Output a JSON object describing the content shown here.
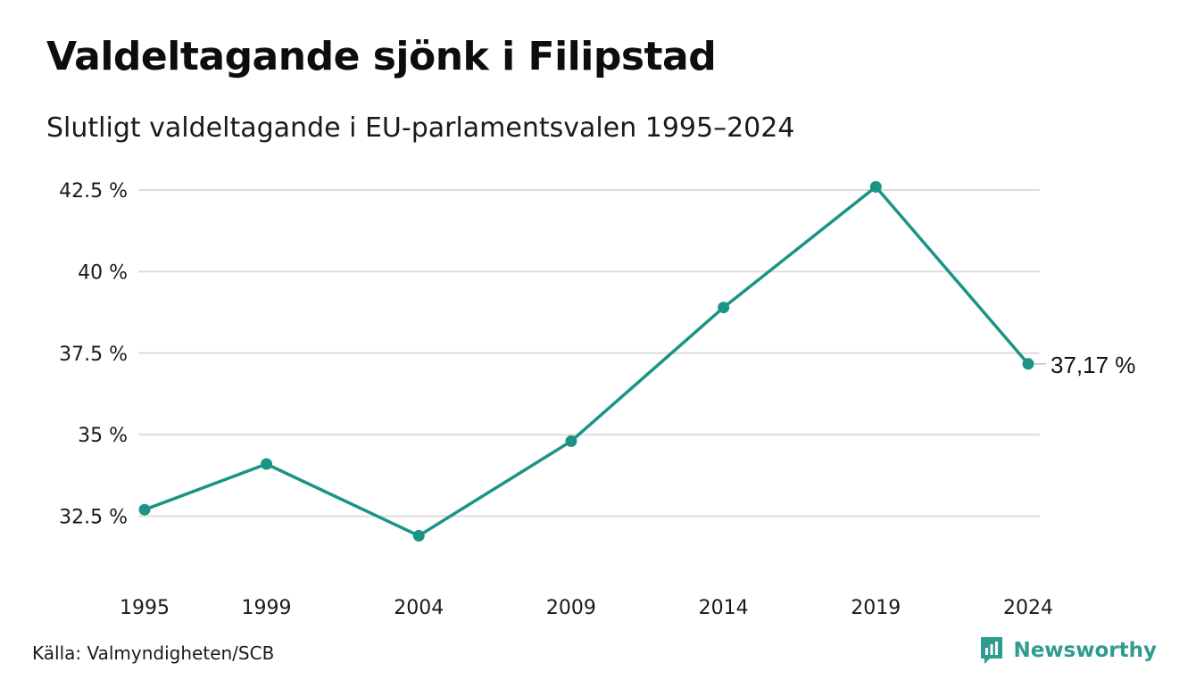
{
  "title": "Valdeltagande sjönk i Filipstad",
  "subtitle": "Slutligt valdeltagande i EU-parlamentsvalen 1995–2024",
  "source": "Källa: Valmyndigheten/SCB",
  "brand": {
    "name": "Newsworthy",
    "icon": "newsworthy-logo-icon",
    "color": "#2f9c8f"
  },
  "colors": {
    "line": "#1a9485",
    "grid": "#dddddd"
  },
  "chart_data": {
    "type": "line",
    "title": "Valdeltagande sjönk i Filipstad",
    "subtitle": "Slutligt valdeltagande i EU-parlamentsvalen 1995–2024",
    "x": [
      "1995",
      "1999",
      "2004",
      "2009",
      "2014",
      "2019",
      "2024"
    ],
    "x_values": [
      1995,
      1999,
      2004,
      2009,
      2014,
      2019,
      2024
    ],
    "series": [
      {
        "values": [
          32.7,
          34.1,
          31.9,
          34.8,
          38.9,
          42.6,
          37.17
        ]
      }
    ],
    "yticks": [
      32.5,
      35,
      37.5,
      40,
      42.5
    ],
    "ytick_labels": [
      "32.5 %",
      "35 %",
      "37.5 %",
      "40 %",
      "42.5 %"
    ],
    "xtick_labels": [
      "1995",
      "1999",
      "2004",
      "2009",
      "2014",
      "2019",
      "2024"
    ],
    "ylim": [
      31.0,
      42.8
    ],
    "xlim": [
      1995,
      2024
    ],
    "end_label": "37,17 %",
    "grid": true,
    "legend": "none"
  }
}
